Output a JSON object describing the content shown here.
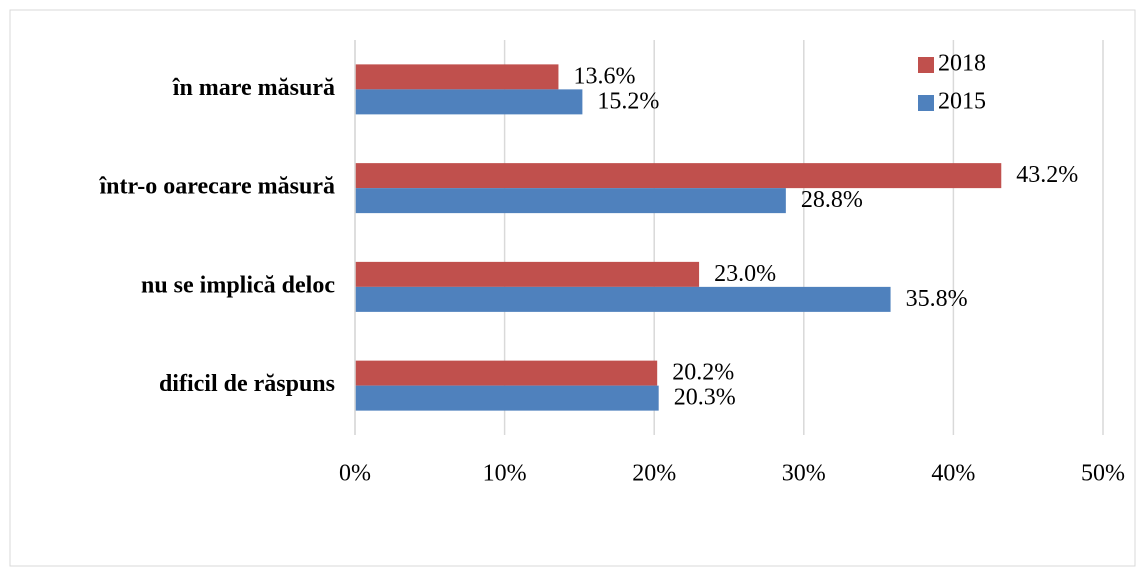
{
  "chart_data": {
    "type": "bar",
    "orientation": "horizontal",
    "categories": [
      "în mare măsură",
      "într-o oarecare măsură",
      "nu se implică deloc",
      "dificil de răspuns"
    ],
    "series": [
      {
        "name": "2018",
        "color": "#c0504d",
        "values": [
          13.6,
          43.2,
          23.0,
          20.2
        ],
        "value_labels": [
          "13.6%",
          "43.2%",
          "23.0%",
          "20.2%"
        ]
      },
      {
        "name": "2015",
        "color": "#4f81bd",
        "values": [
          15.2,
          28.8,
          35.8,
          20.3
        ],
        "value_labels": [
          "15.2%",
          "28.8%",
          "35.8%",
          "20.3%"
        ]
      }
    ],
    "xlim": [
      0,
      50
    ],
    "xticks": [
      {
        "value": 0,
        "label": "0%"
      },
      {
        "value": 10,
        "label": "10%"
      },
      {
        "value": 20,
        "label": "20%"
      },
      {
        "value": 30,
        "label": "30%"
      },
      {
        "value": 40,
        "label": "40%"
      },
      {
        "value": 50,
        "label": "50%"
      }
    ],
    "grid": true,
    "legend": "top-right"
  }
}
